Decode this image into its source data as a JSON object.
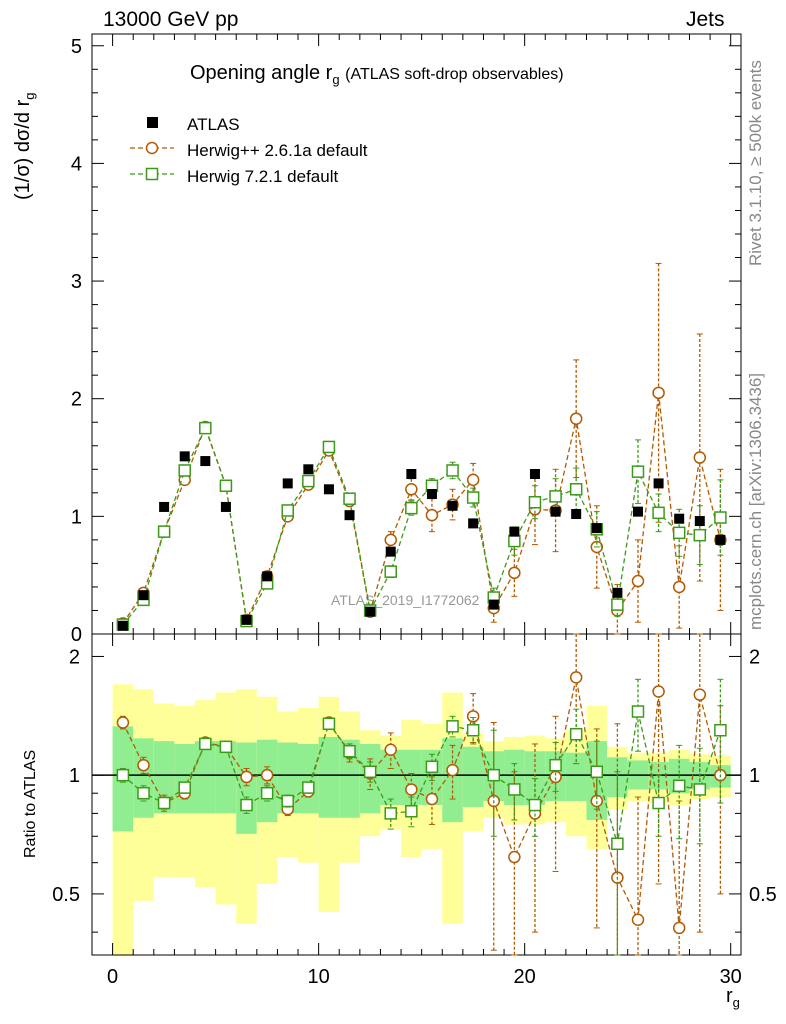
{
  "header": {
    "left": "13000 GeV pp",
    "right": "Jets"
  },
  "side": {
    "rivet": "Rivet 3.1.10, ≥ 500k events",
    "mcplots": "mcplots.cern.ch [arXiv:1306.3436]"
  },
  "watermark": "ATLAS_2019_I1772062",
  "colors": {
    "data": "#000000",
    "herwigpp": "#b35a00",
    "herwig7": "#3c9a1a",
    "band_outer": "#ffff99",
    "band_inner": "#90ee90"
  },
  "chart_data": {
    "type": "scatter",
    "title": "Opening angle r",
    "title_sub": "g",
    "title_suffix": "(ATLAS soft-drop observables)",
    "ylabel": "(1/σ) dσ/d r",
    "ylabel_sub": "g",
    "ratio_ylabel": "Ratio to ATLAS",
    "xlabel": "r",
    "xlabel_sub": "g",
    "xlim": [
      -1,
      30.5
    ],
    "ylim": [
      0,
      5.1
    ],
    "ratio_ylim": [
      0.35,
      2.28
    ],
    "x_ticks": [
      "0",
      "10",
      "20",
      "30"
    ],
    "y_ticks": [
      "0",
      "1",
      "2",
      "3",
      "4",
      "5"
    ],
    "ratio_ticks": [
      "0.5",
      "1",
      "2"
    ],
    "legend": [
      "ATLAS",
      "Herwig++ 2.6.1a default",
      "Herwig 7.2.1 default"
    ],
    "x": [
      0.5,
      1.5,
      2.5,
      3.5,
      4.5,
      5.5,
      6.5,
      7.5,
      8.5,
      9.5,
      10.5,
      11.5,
      12.5,
      13.5,
      14.5,
      15.5,
      16.5,
      17.5,
      18.5,
      19.5,
      20.5,
      21.5,
      22.5,
      23.5,
      24.5,
      25.5,
      26.5,
      27.5,
      28.5,
      29.5
    ],
    "series": [
      {
        "name": "ATLAS",
        "values": [
          0.07,
          0.33,
          1.08,
          1.51,
          1.47,
          1.08,
          0.12,
          0.49,
          1.28,
          1.4,
          1.23,
          1.01,
          0.19,
          0.7,
          1.36,
          1.19,
          1.09,
          0.94,
          0.25,
          0.87,
          1.36,
          1.04,
          1.02,
          0.9,
          0.35,
          1.04,
          1.28,
          0.98,
          0.96,
          0.8
        ]
      },
      {
        "name": "Herwig++ 2.6.1a default",
        "values": [
          0.09,
          0.35,
          0.87,
          1.31,
          1.76,
          1.26,
          0.12,
          0.49,
          1.0,
          1.27,
          1.56,
          1.13,
          0.19,
          0.8,
          1.23,
          1.01,
          1.1,
          1.31,
          0.22,
          0.52,
          1.06,
          1.05,
          1.83,
          0.74,
          0.2,
          0.45,
          2.05,
          0.4,
          1.5,
          0.8
        ],
        "errors": [
          0.01,
          0.02,
          0.03,
          0.03,
          0.04,
          0.03,
          0.01,
          0.02,
          0.03,
          0.03,
          0.04,
          0.04,
          0.02,
          0.07,
          0.09,
          0.14,
          0.13,
          0.14,
          0.12,
          0.2,
          0.3,
          0.35,
          0.5,
          0.35,
          0.22,
          0.35,
          1.1,
          0.35,
          1.05,
          0.6
        ]
      },
      {
        "name": "Herwig 7.2.1 default",
        "values": [
          0.08,
          0.29,
          0.87,
          1.39,
          1.75,
          1.26,
          0.11,
          0.43,
          1.05,
          1.3,
          1.59,
          1.15,
          0.2,
          0.53,
          1.07,
          1.26,
          1.39,
          1.16,
          0.31,
          0.79,
          1.12,
          1.17,
          1.23,
          0.89,
          0.25,
          1.38,
          1.03,
          0.86,
          0.84,
          0.99
        ],
        "errors": [
          0.01,
          0.02,
          0.03,
          0.03,
          0.04,
          0.03,
          0.01,
          0.02,
          0.03,
          0.03,
          0.04,
          0.04,
          0.02,
          0.05,
          0.06,
          0.06,
          0.07,
          0.08,
          0.08,
          0.12,
          0.14,
          0.15,
          0.18,
          0.15,
          0.1,
          0.27,
          0.16,
          0.2,
          0.25,
          0.32
        ]
      }
    ],
    "ratio_band_inner": [
      [
        0.72,
        1.33
      ],
      [
        0.78,
        1.24
      ],
      [
        0.8,
        1.22
      ],
      [
        0.8,
        1.2
      ],
      [
        0.8,
        1.22
      ],
      [
        0.8,
        1.22
      ],
      [
        0.71,
        1.21
      ],
      [
        0.76,
        1.23
      ],
      [
        0.8,
        1.21
      ],
      [
        0.8,
        1.2
      ],
      [
        0.78,
        1.25
      ],
      [
        0.78,
        1.23
      ],
      [
        0.8,
        1.2
      ],
      [
        0.84,
        1.16
      ],
      [
        0.84,
        1.16
      ],
      [
        0.84,
        1.16
      ],
      [
        0.76,
        1.24
      ],
      [
        0.83,
        1.18
      ],
      [
        0.86,
        1.15
      ],
      [
        0.84,
        1.16
      ],
      [
        0.84,
        1.15
      ],
      [
        0.86,
        1.15
      ],
      [
        0.86,
        1.14
      ],
      [
        0.77,
        1.22
      ],
      [
        0.88,
        1.11
      ],
      [
        0.92,
        1.09
      ],
      [
        0.92,
        1.08
      ],
      [
        0.9,
        1.1
      ],
      [
        0.92,
        1.08
      ],
      [
        0.93,
        1.06
      ]
    ],
    "ratio_band_outer": [
      [
        0.35,
        1.7
      ],
      [
        0.48,
        1.65
      ],
      [
        0.55,
        1.52
      ],
      [
        0.55,
        1.5
      ],
      [
        0.52,
        1.55
      ],
      [
        0.47,
        1.62
      ],
      [
        0.42,
        1.65
      ],
      [
        0.53,
        1.58
      ],
      [
        0.62,
        1.45
      ],
      [
        0.6,
        1.48
      ],
      [
        0.45,
        1.58
      ],
      [
        0.6,
        1.45
      ],
      [
        0.7,
        1.3
      ],
      [
        0.73,
        1.26
      ],
      [
        0.62,
        1.38
      ],
      [
        0.65,
        1.35
      ],
      [
        0.42,
        1.62
      ],
      [
        0.72,
        1.28
      ],
      [
        0.78,
        1.22
      ],
      [
        0.75,
        1.25
      ],
      [
        0.75,
        1.26
      ],
      [
        0.76,
        1.24
      ],
      [
        0.7,
        1.3
      ],
      [
        0.65,
        1.5
      ],
      [
        0.82,
        1.18
      ],
      [
        0.86,
        1.14
      ],
      [
        0.85,
        1.14
      ],
      [
        0.84,
        1.16
      ],
      [
        0.87,
        1.13
      ],
      [
        0.88,
        1.12
      ]
    ],
    "ratio_herwigpp": [
      1.36,
      1.06,
      0.85,
      0.9,
      1.21,
      1.18,
      0.99,
      1.0,
      0.82,
      0.91,
      1.36,
      1.14,
      1.01,
      1.16,
      0.92,
      0.87,
      1.03,
      1.41,
      0.86,
      0.62,
      0.8,
      0.99,
      1.77,
      0.86,
      0.55,
      0.43,
      1.63,
      0.41,
      1.6,
      1.0
    ],
    "ratio_herwigpp_err": [
      0.05,
      0.05,
      0.04,
      0.03,
      0.03,
      0.03,
      0.05,
      0.05,
      0.03,
      0.03,
      0.04,
      0.06,
      0.09,
      0.12,
      0.09,
      0.12,
      0.16,
      0.2,
      0.5,
      0.4,
      0.4,
      0.42,
      0.7,
      0.45,
      0.8,
      0.45,
      1.1,
      0.45,
      1.2,
      0.5
    ],
    "ratio_herwig7": [
      1.0,
      0.9,
      0.85,
      0.93,
      1.2,
      1.18,
      0.84,
      0.9,
      0.86,
      0.93,
      1.35,
      1.15,
      1.02,
      0.8,
      0.81,
      1.05,
      1.33,
      1.3,
      1.0,
      0.92,
      0.84,
      1.06,
      1.27,
      1.02,
      0.67,
      1.45,
      0.85,
      0.94,
      0.92,
      1.3
    ],
    "ratio_herwig7_err": [
      0.04,
      0.04,
      0.03,
      0.03,
      0.03,
      0.03,
      0.04,
      0.04,
      0.03,
      0.03,
      0.04,
      0.05,
      0.06,
      0.07,
      0.07,
      0.08,
      0.08,
      0.1,
      0.3,
      0.15,
      0.14,
      0.15,
      0.2,
      0.2,
      0.35,
      0.3,
      0.15,
      0.25,
      0.25,
      0.45
    ]
  }
}
